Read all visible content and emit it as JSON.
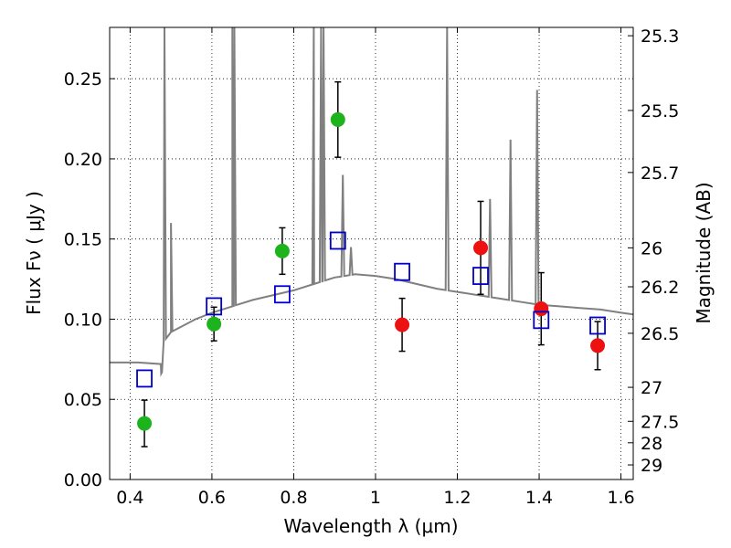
{
  "chart_data": {
    "type": "scatter",
    "xlabel": "Wavelength  λ (μm)",
    "ylabel": "Flux  Fν  ( μJy )",
    "ylabel2": "Magnitude (AB)",
    "xlim": [
      0.35,
      1.63
    ],
    "ylim": [
      0.0,
      0.282
    ],
    "grid": true,
    "x_ticks": [
      0.4,
      0.6,
      0.8,
      1.0,
      1.2,
      1.4,
      1.6
    ],
    "x_tick_labels": [
      "0.4",
      "0.6",
      "0.8",
      "1",
      "1.2",
      "1.4",
      "1.6"
    ],
    "y_ticks": [
      0.0,
      0.05,
      0.1,
      0.15,
      0.2,
      0.25
    ],
    "y_tick_labels": [
      "0.00",
      "0.05",
      "0.10",
      "0.15",
      "0.20",
      "0.25"
    ],
    "mag_ticks": [
      {
        "label": "25.3",
        "flux": 0.2768
      },
      {
        "label": "25.5",
        "flux": 0.2302
      },
      {
        "label": "25.7",
        "flux": 0.1915
      },
      {
        "label": "26",
        "flux": 0.1445
      },
      {
        "label": "26.2",
        "flux": 0.1202
      },
      {
        "label": "26.5",
        "flux": 0.0912
      },
      {
        "label": "27",
        "flux": 0.0575
      },
      {
        "label": "27.5",
        "flux": 0.0363
      },
      {
        "label": "28",
        "flux": 0.0229
      },
      {
        "label": "29",
        "flux": 0.0091
      }
    ],
    "series": [
      {
        "marker": "circle",
        "color": "#1db31d",
        "points": [
          {
            "x": 0.435,
            "y": 0.035,
            "err": 0.0145
          },
          {
            "x": 0.605,
            "y": 0.097,
            "err": 0.0105
          },
          {
            "x": 0.772,
            "y": 0.1425,
            "err": 0.0145
          },
          {
            "x": 0.908,
            "y": 0.2245,
            "err": 0.0235
          }
        ]
      },
      {
        "marker": "circle",
        "color": "#ee1111",
        "points": [
          {
            "x": 1.065,
            "y": 0.0965,
            "err": 0.0165
          },
          {
            "x": 1.257,
            "y": 0.1445,
            "err": 0.029
          },
          {
            "x": 1.405,
            "y": 0.1065,
            "err": 0.0225
          },
          {
            "x": 1.543,
            "y": 0.0835,
            "err": 0.015
          }
        ]
      },
      {
        "marker": "open-square",
        "color": "#0000cc",
        "points": [
          {
            "x": 0.435,
            "y": 0.063
          },
          {
            "x": 0.605,
            "y": 0.108
          },
          {
            "x": 0.772,
            "y": 0.1155
          },
          {
            "x": 0.908,
            "y": 0.149
          },
          {
            "x": 1.065,
            "y": 0.1295
          },
          {
            "x": 1.257,
            "y": 0.127
          },
          {
            "x": 1.405,
            "y": 0.0995
          },
          {
            "x": 1.543,
            "y": 0.096
          }
        ]
      }
    ],
    "model_spectrum": {
      "color": "#808080",
      "continuum": [
        [
          0.35,
          0.073
        ],
        [
          0.42,
          0.073
        ],
        [
          0.475,
          0.072
        ],
        [
          0.476,
          0.066
        ],
        [
          0.478,
          0.067
        ],
        [
          0.482,
          0.086
        ],
        [
          0.5,
          0.092
        ],
        [
          0.53,
          0.096
        ],
        [
          0.56,
          0.1
        ],
        [
          0.6,
          0.104
        ],
        [
          0.65,
          0.108
        ],
        [
          0.7,
          0.112
        ],
        [
          0.75,
          0.115
        ],
        [
          0.8,
          0.118
        ],
        [
          0.85,
          0.122
        ],
        [
          0.9,
          0.126
        ],
        [
          0.95,
          0.128
        ],
        [
          1.0,
          0.127
        ],
        [
          1.05,
          0.125
        ],
        [
          1.1,
          0.122
        ],
        [
          1.15,
          0.119
        ],
        [
          1.2,
          0.117
        ],
        [
          1.25,
          0.115
        ],
        [
          1.3,
          0.113
        ],
        [
          1.35,
          0.111
        ],
        [
          1.4,
          0.109
        ],
        [
          1.45,
          0.108
        ],
        [
          1.5,
          0.107
        ],
        [
          1.55,
          0.106
        ],
        [
          1.6,
          0.104
        ],
        [
          1.63,
          0.103
        ]
      ],
      "lines": [
        [
          0.484,
          0.29
        ],
        [
          0.5,
          0.16
        ],
        [
          0.655,
          0.29
        ],
        [
          0.65,
          0.29
        ],
        [
          0.849,
          0.29
        ],
        [
          0.867,
          0.29
        ],
        [
          0.873,
          0.29
        ],
        [
          0.92,
          0.19
        ],
        [
          0.94,
          0.145
        ],
        [
          1.175,
          0.29
        ],
        [
          1.28,
          0.175
        ],
        [
          1.33,
          0.212
        ],
        [
          1.395,
          0.243
        ],
        [
          1.33,
          0.212
        ]
      ]
    }
  }
}
